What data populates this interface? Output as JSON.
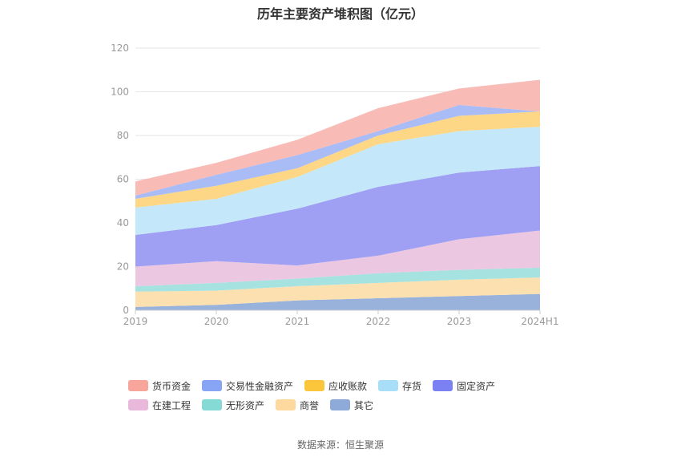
{
  "title": "历年主要资产堆积图（亿元）",
  "source": "数据来源：恒生聚源",
  "chart_data": {
    "type": "area",
    "stacked": true,
    "title": "历年主要资产堆积图（亿元）",
    "categories": [
      "2019",
      "2020",
      "2021",
      "2022",
      "2023",
      "2024H1"
    ],
    "ylim": [
      0,
      120
    ],
    "yticks": [
      0,
      20,
      40,
      60,
      80,
      100,
      120
    ],
    "grid": true,
    "legend_position": "bottom",
    "series": [
      {
        "name": "其它",
        "color": "#98b2dc",
        "values": [
          1.5,
          2.5,
          4.5,
          5.5,
          6.5,
          7.5
        ]
      },
      {
        "name": "商誉",
        "color": "#fde0b0",
        "values": [
          7.0,
          6.5,
          6.5,
          7.0,
          7.5,
          7.5
        ]
      },
      {
        "name": "无形资产",
        "color": "#a6e3e0",
        "values": [
          2.5,
          3.5,
          3.5,
          4.5,
          4.5,
          4.5
        ]
      },
      {
        "name": "在建工程",
        "color": "#ebc7e1",
        "values": [
          9.0,
          10.0,
          6.0,
          8.0,
          14.0,
          17.0
        ]
      },
      {
        "name": "固定资产",
        "color": "#9fa0f3",
        "values": [
          14.5,
          16.5,
          26.0,
          31.5,
          30.5,
          29.5
        ]
      },
      {
        "name": "存货",
        "color": "#c4e8fa",
        "values": [
          12.5,
          12.0,
          14.5,
          19.5,
          19.0,
          18.0
        ]
      },
      {
        "name": "应收账款",
        "color": "#fdd786",
        "values": [
          4.0,
          6.0,
          4.0,
          4.0,
          7.0,
          7.0
        ]
      },
      {
        "name": "交易性金融资产",
        "color": "#aabcf5",
        "values": [
          1.5,
          5.0,
          6.0,
          2.0,
          5.0,
          0.0
        ]
      },
      {
        "name": "货币资金",
        "color": "#f8bbb6",
        "values": [
          6.5,
          5.5,
          7.0,
          10.5,
          7.5,
          14.5
        ]
      }
    ]
  },
  "legend": [
    {
      "name": "货币资金",
      "color": "#f8a59c"
    },
    {
      "name": "交易性金融资产",
      "color": "#88a5f5"
    },
    {
      "name": "应收账款",
      "color": "#fcc63c"
    },
    {
      "name": "存货",
      "color": "#a9def8"
    },
    {
      "name": "固定资产",
      "color": "#7b80f2"
    },
    {
      "name": "在建工程",
      "color": "#e8b9da"
    },
    {
      "name": "无形资产",
      "color": "#86dad6"
    },
    {
      "name": "商誉",
      "color": "#fdd9a0"
    },
    {
      "name": "其它",
      "color": "#8eaad8"
    }
  ]
}
